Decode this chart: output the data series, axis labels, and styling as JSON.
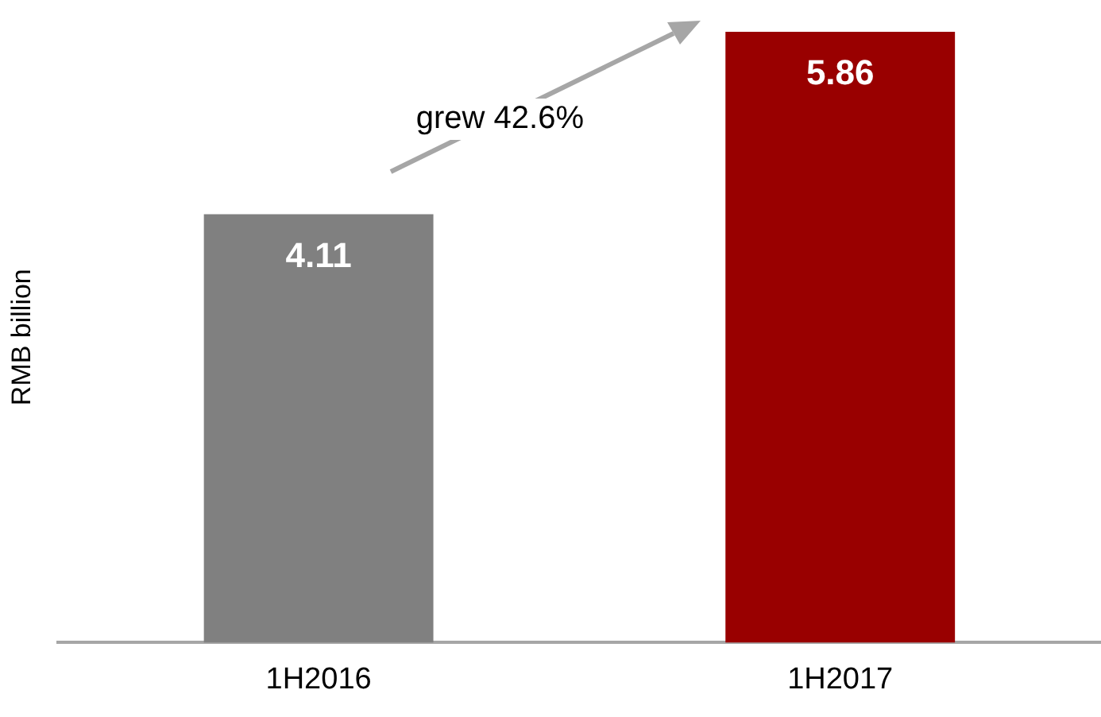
{
  "chart_data": {
    "type": "bar",
    "ylabel": "RMB billion",
    "categories": [
      "1H2016",
      "1H2017"
    ],
    "values": [
      4.11,
      5.86
    ],
    "colors": [
      "#808080",
      "#990000"
    ],
    "data_labels": true,
    "annotations": [
      "grew 42.6%"
    ],
    "grid": false,
    "legend": false
  }
}
